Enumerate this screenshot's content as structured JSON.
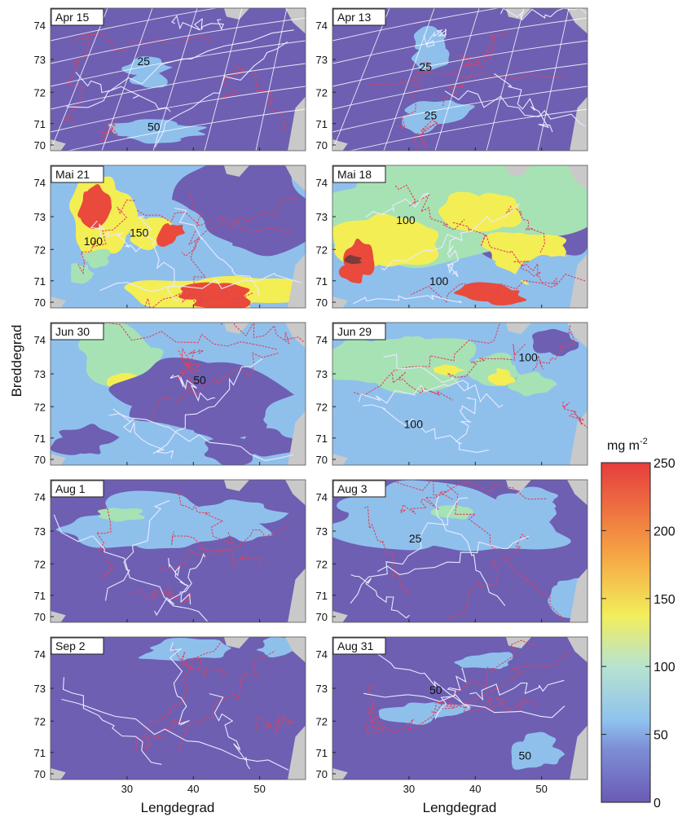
{
  "axes": {
    "ylabel": "Breddegrad",
    "xlabel_left": "Lengdegrad",
    "xlabel_right": "Lengdegrad",
    "lat_ticks": [
      "74",
      "73",
      "72",
      "71",
      "70"
    ],
    "lon_ticks": [
      "30",
      "40",
      "50"
    ]
  },
  "colorbar": {
    "unit": "mg m",
    "unit_exp": "-2",
    "ticks": [
      "250",
      "200",
      "150",
      "100",
      "50",
      "0"
    ],
    "range": [
      0,
      250
    ],
    "stops": [
      "#6b5bb5",
      "#7d8fd6",
      "#8fc2ee",
      "#b7e3d0",
      "#f2ee5c",
      "#f6a845",
      "#e63d3d"
    ]
  },
  "colors": {
    "low": "#6e5fb3",
    "light_blue": "#8fc0ec",
    "green": "#a7e2b4",
    "yellow": "#f4ee55",
    "red": "#e94a3b",
    "land": "#c9c9c9",
    "contour_red": "#e0405a",
    "contour_white": "#e8eaff"
  },
  "panels": [
    {
      "label": "Apr 15",
      "contour_labels": [
        "25",
        "50"
      ]
    },
    {
      "label": "Apr 13",
      "contour_labels": [
        "25",
        "25"
      ]
    },
    {
      "label": "Mai 21",
      "contour_labels": [
        "100",
        "150"
      ]
    },
    {
      "label": "Mai 18",
      "contour_labels": [
        "100",
        "100"
      ]
    },
    {
      "label": "Jun 30",
      "contour_labels": [
        "50"
      ]
    },
    {
      "label": "Jun 29",
      "contour_labels": [
        "100",
        "100"
      ]
    },
    {
      "label": "Aug 1",
      "contour_labels": []
    },
    {
      "label": "Aug 3",
      "contour_labels": [
        "25"
      ]
    },
    {
      "label": "Sep 2",
      "contour_labels": []
    },
    {
      "label": "Aug 31",
      "contour_labels": [
        "50",
        "50"
      ]
    }
  ]
}
